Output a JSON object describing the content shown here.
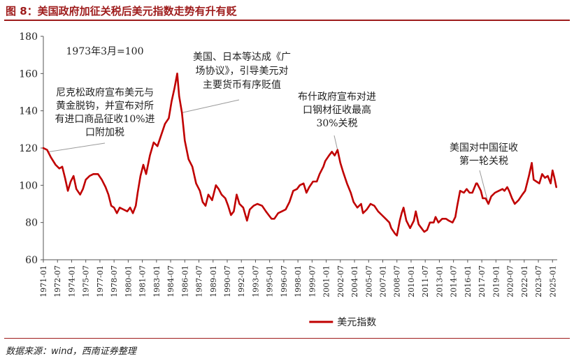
{
  "figure": {
    "title": "图 8：美国政府加征关税后美元指数走势有升有贬",
    "source": "数据来源：wind，西南证券整理"
  },
  "chart_data": {
    "type": "line",
    "ylim": [
      60,
      180
    ],
    "y_ticks": [
      60,
      80,
      100,
      120,
      140,
      160,
      180
    ],
    "x_tick_labels": [
      "1971-01",
      "1972-07",
      "1974-01",
      "1975-07",
      "1977-01",
      "1978-07",
      "1980-01",
      "1981-07",
      "1983-01",
      "1984-07",
      "1986-01",
      "1987-07",
      "1989-01",
      "1990-07",
      "1992-01",
      "1993-07",
      "1995-01",
      "1996-07",
      "1998-01",
      "1999-07",
      "2001-01",
      "2002-07",
      "2004-01",
      "2005-07",
      "2007-01",
      "2008-07",
      "2010-01",
      "2011-07",
      "2013-01",
      "2014-07",
      "2016-01",
      "2017-07",
      "2019-01",
      "2020-07",
      "2022-01",
      "2023-07",
      "2025-01"
    ],
    "legend": "top-left",
    "series": [
      {
        "name": "美元指数",
        "color": "#c00000",
        "points": [
          [
            1971.0,
            120
          ],
          [
            1971.4,
            119
          ],
          [
            1971.8,
            115
          ],
          [
            1972.3,
            111
          ],
          [
            1972.7,
            109
          ],
          [
            1973.0,
            110
          ],
          [
            1973.3,
            104
          ],
          [
            1973.6,
            97
          ],
          [
            1973.9,
            102
          ],
          [
            1974.2,
            105
          ],
          [
            1974.5,
            98
          ],
          [
            1974.9,
            95
          ],
          [
            1975.2,
            98
          ],
          [
            1975.5,
            103
          ],
          [
            1975.9,
            105
          ],
          [
            1976.3,
            106
          ],
          [
            1976.8,
            106
          ],
          [
            1977.2,
            103
          ],
          [
            1977.6,
            99
          ],
          [
            1977.9,
            95
          ],
          [
            1978.2,
            89
          ],
          [
            1978.5,
            88
          ],
          [
            1978.8,
            85
          ],
          [
            1979.1,
            88
          ],
          [
            1979.5,
            87
          ],
          [
            1979.9,
            86
          ],
          [
            1980.2,
            88
          ],
          [
            1980.5,
            85
          ],
          [
            1980.8,
            89
          ],
          [
            1981.0,
            96
          ],
          [
            1981.3,
            105
          ],
          [
            1981.6,
            111
          ],
          [
            1981.9,
            106
          ],
          [
            1982.3,
            116
          ],
          [
            1982.7,
            123
          ],
          [
            1983.1,
            121
          ],
          [
            1983.5,
            127
          ],
          [
            1983.9,
            133
          ],
          [
            1984.3,
            136
          ],
          [
            1984.6,
            145
          ],
          [
            1984.9,
            152
          ],
          [
            1985.2,
            160
          ],
          [
            1985.4,
            148
          ],
          [
            1985.7,
            139
          ],
          [
            1986.0,
            124
          ],
          [
            1986.4,
            114
          ],
          [
            1986.8,
            110
          ],
          [
            1987.2,
            101
          ],
          [
            1987.6,
            97
          ],
          [
            1987.9,
            91
          ],
          [
            1988.2,
            89
          ],
          [
            1988.5,
            95
          ],
          [
            1988.9,
            92
          ],
          [
            1989.3,
            100
          ],
          [
            1989.6,
            98
          ],
          [
            1989.9,
            95
          ],
          [
            1990.3,
            93
          ],
          [
            1990.6,
            89
          ],
          [
            1990.9,
            84
          ],
          [
            1991.2,
            86
          ],
          [
            1991.5,
            95
          ],
          [
            1991.8,
            90
          ],
          [
            1992.2,
            88
          ],
          [
            1992.6,
            81
          ],
          [
            1992.9,
            87
          ],
          [
            1993.3,
            89
          ],
          [
            1993.7,
            90
          ],
          [
            1994.2,
            89
          ],
          [
            1994.6,
            86
          ],
          [
            1994.9,
            84
          ],
          [
            1995.2,
            82
          ],
          [
            1995.5,
            82
          ],
          [
            1995.9,
            85
          ],
          [
            1996.3,
            86
          ],
          [
            1996.7,
            87
          ],
          [
            1997.1,
            91
          ],
          [
            1997.5,
            97
          ],
          [
            1997.9,
            98
          ],
          [
            1998.2,
            100
          ],
          [
            1998.6,
            101
          ],
          [
            1998.9,
            96
          ],
          [
            1999.2,
            99
          ],
          [
            1999.6,
            102
          ],
          [
            2000.0,
            102
          ],
          [
            2000.3,
            106
          ],
          [
            2000.7,
            110
          ],
          [
            2000.9,
            113
          ],
          [
            2001.3,
            116
          ],
          [
            2001.6,
            118
          ],
          [
            2001.9,
            116
          ],
          [
            2002.2,
            119
          ],
          [
            2002.5,
            112
          ],
          [
            2002.8,
            107
          ],
          [
            2003.2,
            101
          ],
          [
            2003.6,
            96
          ],
          [
            2003.9,
            91
          ],
          [
            2004.3,
            88
          ],
          [
            2004.7,
            90
          ],
          [
            2004.9,
            85
          ],
          [
            2005.3,
            87
          ],
          [
            2005.7,
            90
          ],
          [
            2006.1,
            89
          ],
          [
            2006.5,
            86
          ],
          [
            2006.9,
            84
          ],
          [
            2007.3,
            82
          ],
          [
            2007.7,
            80
          ],
          [
            2007.9,
            77
          ],
          [
            2008.3,
            74
          ],
          [
            2008.5,
            73
          ],
          [
            2008.8,
            81
          ],
          [
            2009.0,
            85
          ],
          [
            2009.2,
            88
          ],
          [
            2009.5,
            81
          ],
          [
            2009.9,
            77
          ],
          [
            2010.3,
            81
          ],
          [
            2010.5,
            86
          ],
          [
            2010.8,
            79
          ],
          [
            2011.1,
            77
          ],
          [
            2011.4,
            75
          ],
          [
            2011.7,
            76
          ],
          [
            2012.0,
            80
          ],
          [
            2012.4,
            80
          ],
          [
            2012.6,
            83
          ],
          [
            2012.9,
            80
          ],
          [
            2013.3,
            82
          ],
          [
            2013.7,
            82
          ],
          [
            2014.0,
            81
          ],
          [
            2014.4,
            80
          ],
          [
            2014.7,
            83
          ],
          [
            2014.9,
            89
          ],
          [
            2015.2,
            97
          ],
          [
            2015.6,
            96
          ],
          [
            2015.9,
            98
          ],
          [
            2016.2,
            96
          ],
          [
            2016.5,
            96
          ],
          [
            2016.9,
            101
          ],
          [
            2017.0,
            101
          ],
          [
            2017.4,
            97
          ],
          [
            2017.6,
            93
          ],
          [
            2017.9,
            93
          ],
          [
            2018.2,
            90
          ],
          [
            2018.5,
            94
          ],
          [
            2018.9,
            96
          ],
          [
            2019.3,
            97
          ],
          [
            2019.7,
            98
          ],
          [
            2019.9,
            97
          ],
          [
            2020.2,
            99
          ],
          [
            2020.4,
            97
          ],
          [
            2020.7,
            93
          ],
          [
            2021.0,
            90
          ],
          [
            2021.4,
            92
          ],
          [
            2021.8,
            95
          ],
          [
            2022.1,
            97
          ],
          [
            2022.5,
            105
          ],
          [
            2022.8,
            112
          ],
          [
            2023.0,
            103
          ],
          [
            2023.3,
            102
          ],
          [
            2023.6,
            101
          ],
          [
            2023.9,
            106
          ],
          [
            2024.2,
            104
          ],
          [
            2024.5,
            105
          ],
          [
            2024.8,
            101
          ],
          [
            2025.0,
            108
          ],
          [
            2025.2,
            104
          ],
          [
            2025.4,
            99
          ]
        ]
      }
    ],
    "annotations": [
      {
        "id": "base",
        "lines": [
          "1973年3月=100"
        ]
      },
      {
        "id": "nixon",
        "lines": [
          "尼克松政府宣布美元与",
          "黄金脱钩，并宣布对所",
          "有进口商品征收10%进",
          "口附加税"
        ]
      },
      {
        "id": "plaza",
        "lines": [
          "美国、日本等达成《广",
          "场协议》，引导美元对",
          "主要货币有序贬值"
        ]
      },
      {
        "id": "bush",
        "lines": [
          "布什政府宣布对进",
          "口钢材征收最高",
          "30%关税"
        ]
      },
      {
        "id": "china",
        "lines": [
          "美国对中国征收",
          "第一轮关税"
        ]
      }
    ]
  }
}
